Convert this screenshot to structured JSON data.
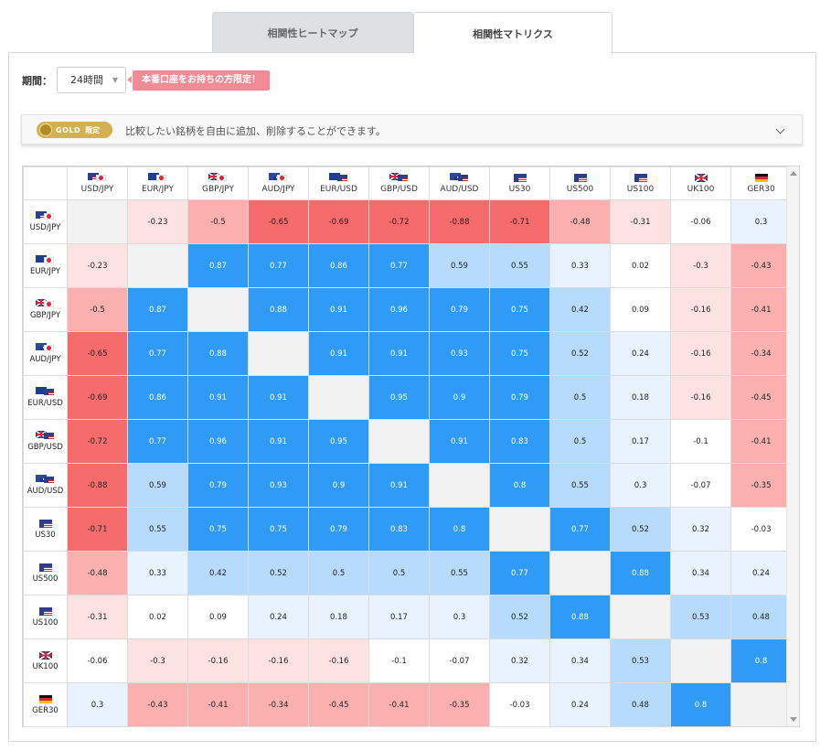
{
  "tabs": [
    {
      "label": "相関性ヒートマップ",
      "active": false
    },
    {
      "label": "相関性マトリクス",
      "active": true
    }
  ],
  "period": {
    "label": "期間：",
    "value": "24時間"
  },
  "promo": "本番口座をお持ちの方限定！",
  "gold_bar": {
    "badge_word": "GOLD",
    "badge_tag": "限定",
    "text": "比較したい銘柄を自由に追加、削除することができます。"
  },
  "colors": {
    "strong_pos": "#2f9bf6",
    "mid_pos": "#b7dbfd",
    "weak_pos": "#e8f3fe",
    "weak_neg": "#fde2e2",
    "mid_neg": "#fbb0b0",
    "strong_neg": "#f66b6b",
    "diag": "#f2f2f2",
    "badge": "#f38b96",
    "gold": "#d4b150"
  },
  "instruments": [
    {
      "name": "USD/JPY",
      "flags": [
        "us",
        "jp"
      ]
    },
    {
      "name": "EUR/JPY",
      "flags": [
        "eu",
        "jp"
      ]
    },
    {
      "name": "GBP/JPY",
      "flags": [
        "gb",
        "jp"
      ]
    },
    {
      "name": "AUD/JPY",
      "flags": [
        "au",
        "jp"
      ]
    },
    {
      "name": "EUR/USD",
      "flags": [
        "eu",
        "us"
      ]
    },
    {
      "name": "GBP/USD",
      "flags": [
        "gb",
        "us"
      ]
    },
    {
      "name": "AUD/USD",
      "flags": [
        "au",
        "us"
      ]
    },
    {
      "name": "US30",
      "flags": [
        "us"
      ]
    },
    {
      "name": "US500",
      "flags": [
        "us"
      ]
    },
    {
      "name": "US100",
      "flags": [
        "us"
      ]
    },
    {
      "name": "UK100",
      "flags": [
        "gb"
      ]
    },
    {
      "name": "GER30",
      "flags": [
        "de"
      ]
    }
  ],
  "matrix": [
    [
      "",
      "-0.23",
      "-0.5",
      "-0.65",
      "-0.69",
      "-0.72",
      "-0.88",
      "-0.71",
      "-0.48",
      "-0.31",
      "-0.06",
      "0.3"
    ],
    [
      "-0.23",
      "",
      "0.87",
      "0.77",
      "0.86",
      "0.77",
      "0.59",
      "0.55",
      "0.33",
      "0.02",
      "-0.3",
      "-0.43"
    ],
    [
      "-0.5",
      "0.87",
      "",
      "0.88",
      "0.91",
      "0.96",
      "0.79",
      "0.75",
      "0.42",
      "0.09",
      "-0.16",
      "-0.41"
    ],
    [
      "-0.65",
      "0.77",
      "0.88",
      "",
      "0.91",
      "0.91",
      "0.93",
      "0.75",
      "0.52",
      "0.24",
      "-0.16",
      "-0.34"
    ],
    [
      "-0.69",
      "0.86",
      "0.91",
      "0.91",
      "",
      "0.95",
      "0.9",
      "0.79",
      "0.5",
      "0.18",
      "-0.16",
      "-0.45"
    ],
    [
      "-0.72",
      "0.77",
      "0.96",
      "0.91",
      "0.95",
      "",
      "0.91",
      "0.83",
      "0.5",
      "0.17",
      "-0.1",
      "-0.41"
    ],
    [
      "-0.88",
      "0.59",
      "0.79",
      "0.93",
      "0.9",
      "0.91",
      "",
      "0.8",
      "0.55",
      "0.3",
      "-0.07",
      "-0.35"
    ],
    [
      "-0.71",
      "0.55",
      "0.75",
      "0.75",
      "0.79",
      "0.83",
      "0.8",
      "",
      "0.77",
      "0.52",
      "0.32",
      "-0.03"
    ],
    [
      "-0.48",
      "0.33",
      "0.42",
      "0.52",
      "0.5",
      "0.5",
      "0.55",
      "0.77",
      "",
      "0.88",
      "0.34",
      "0.24"
    ],
    [
      "-0.31",
      "0.02",
      "0.09",
      "0.24",
      "0.18",
      "0.17",
      "0.3",
      "0.52",
      "0.88",
      "",
      "0.53",
      "0.48"
    ],
    [
      "-0.06",
      "-0.3",
      "-0.16",
      "-0.16",
      "-0.16",
      "-0.1",
      "-0.07",
      "0.32",
      "0.34",
      "0.53",
      "",
      "0.8"
    ],
    [
      "0.3",
      "-0.43",
      "-0.41",
      "-0.34",
      "-0.45",
      "-0.41",
      "-0.35",
      "-0.03",
      "0.24",
      "0.48",
      "0.8",
      ""
    ]
  ]
}
